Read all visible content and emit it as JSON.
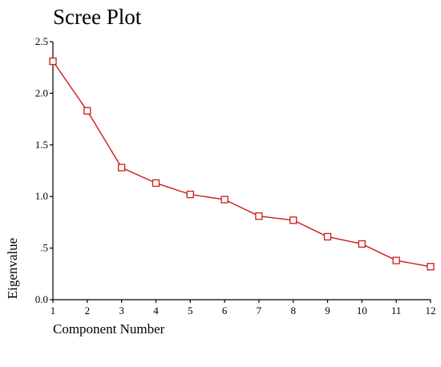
{
  "chart_data": {
    "type": "line",
    "title": "Scree Plot",
    "xlabel": "Component Number",
    "ylabel": "Eigenvalue",
    "x": [
      1,
      2,
      3,
      4,
      5,
      6,
      7,
      8,
      9,
      10,
      11,
      12
    ],
    "x_tick_labels": [
      "1",
      "2",
      "3",
      "4",
      "5",
      "6",
      "7",
      "8",
      "9",
      "10",
      "11",
      "12"
    ],
    "xlim": [
      1,
      12
    ],
    "ylim": [
      0,
      2.5
    ],
    "y_ticks": [
      0,
      0.5,
      1.0,
      1.5,
      2.0,
      2.5
    ],
    "y_tick_labels": [
      "0.0",
      ".5",
      "1.0",
      "1.5",
      "2.0",
      "2.5"
    ],
    "series": [
      {
        "values": [
          2.31,
          1.83,
          1.28,
          1.13,
          1.02,
          0.97,
          0.81,
          0.77,
          0.61,
          0.54,
          0.38,
          0.32
        ],
        "color": "#cc1b1b",
        "marker": "square"
      }
    ],
    "grid": false,
    "legend": "none"
  }
}
